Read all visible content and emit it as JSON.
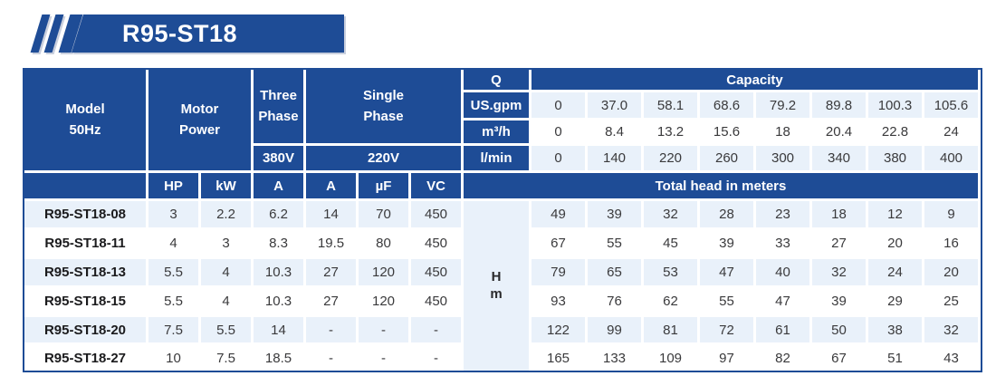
{
  "banner": {
    "title": "R95-ST18"
  },
  "colors": {
    "primary_blue": "#1E4C96",
    "light_row": "#E9F1FA",
    "text_dark": "#3a3a3c"
  },
  "table": {
    "header": {
      "model_line1": "Model",
      "model_line2": "50Hz",
      "motor_line1": "Motor",
      "motor_line2": "Power",
      "three_line1": "Three",
      "three_line2": "Phase",
      "single_line1": "Single",
      "single_line2": "Phase",
      "v380": "380V",
      "v220": "220V",
      "q": "Q",
      "capacity": "Capacity",
      "us_gpm": "US.gpm",
      "m3h": "m³/h",
      "lmin": "l/min",
      "hp": "HP",
      "kw": "kW",
      "a_three": "A",
      "a_single": "A",
      "uf": "µF",
      "vc": "VC",
      "total_head": "Total head in meters",
      "hm_line1": "H",
      "hm_line2": "m"
    },
    "capacity_rows": {
      "us_gpm": [
        "0",
        "37.0",
        "58.1",
        "68.6",
        "79.2",
        "89.8",
        "100.3",
        "105.6"
      ],
      "m3h": [
        "0",
        "8.4",
        "13.2",
        "15.6",
        "18",
        "20.4",
        "22.8",
        "24"
      ],
      "lmin": [
        "0",
        "140",
        "220",
        "260",
        "300",
        "340",
        "380",
        "400"
      ]
    },
    "rows": [
      {
        "model": "R95-ST18-08",
        "hp": "3",
        "kw": "2.2",
        "a380": "6.2",
        "a220": "14",
        "uf": "70",
        "vc": "450",
        "head": [
          "49",
          "39",
          "32",
          "28",
          "23",
          "18",
          "12",
          "9"
        ]
      },
      {
        "model": "R95-ST18-11",
        "hp": "4",
        "kw": "3",
        "a380": "8.3",
        "a220": "19.5",
        "uf": "80",
        "vc": "450",
        "head": [
          "67",
          "55",
          "45",
          "39",
          "33",
          "27",
          "20",
          "16"
        ]
      },
      {
        "model": "R95-ST18-13",
        "hp": "5.5",
        "kw": "4",
        "a380": "10.3",
        "a220": "27",
        "uf": "120",
        "vc": "450",
        "head": [
          "79",
          "65",
          "53",
          "47",
          "40",
          "32",
          "24",
          "20"
        ]
      },
      {
        "model": "R95-ST18-15",
        "hp": "5.5",
        "kw": "4",
        "a380": "10.3",
        "a220": "27",
        "uf": "120",
        "vc": "450",
        "head": [
          "93",
          "76",
          "62",
          "55",
          "47",
          "39",
          "29",
          "25"
        ]
      },
      {
        "model": "R95-ST18-20",
        "hp": "7.5",
        "kw": "5.5",
        "a380": "14",
        "a220": "-",
        "uf": "-",
        "vc": "-",
        "head": [
          "122",
          "99",
          "81",
          "72",
          "61",
          "50",
          "38",
          "32"
        ]
      },
      {
        "model": "R95-ST18-27",
        "hp": "10",
        "kw": "7.5",
        "a380": "18.5",
        "a220": "-",
        "uf": "-",
        "vc": "-",
        "head": [
          "165",
          "133",
          "109",
          "97",
          "82",
          "67",
          "51",
          "43"
        ]
      }
    ]
  }
}
